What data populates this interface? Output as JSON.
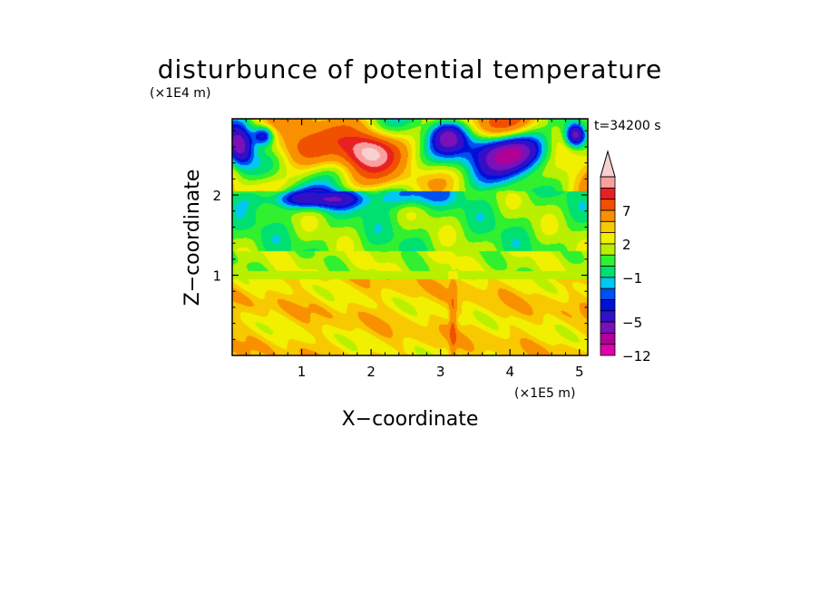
{
  "chart_data": {
    "type": "heatmap",
    "title": "disturbunce of potential temperature",
    "xlabel": "X−coordinate",
    "ylabel": "Z−coordinate",
    "x_multiplier_label": "(×1E5 m)",
    "y_multiplier_label": "(×1E4 m)",
    "time_label": "t=34200 s",
    "xlim": [
      0,
      5.12
    ],
    "ylim": [
      0,
      2.95
    ],
    "x_ticks": [
      {
        "value": 1,
        "label": "1"
      },
      {
        "value": 2,
        "label": "2"
      },
      {
        "value": 3,
        "label": "3"
      },
      {
        "value": 4,
        "label": "4"
      },
      {
        "value": 5,
        "label": "5"
      }
    ],
    "y_ticks": [
      {
        "value": 1,
        "label": "1"
      },
      {
        "value": 2,
        "label": "2"
      }
    ],
    "colorbar": {
      "extend": "max",
      "levels": [
        -12,
        -9,
        -7,
        -5,
        -4,
        -3,
        -2,
        -1,
        0,
        1,
        2,
        3,
        5,
        7,
        9,
        11
      ],
      "colors": [
        "#e000b0",
        "#b00098",
        "#7a10b8",
        "#3010c8",
        "#0010d8",
        "#0050f0",
        "#00c8f0",
        "#00e070",
        "#30f030",
        "#b8f000",
        "#f0f000",
        "#f8c800",
        "#f89000",
        "#f05000",
        "#e82020",
        "#f8a0a0",
        "#f8d0d0"
      ],
      "tick_labels": [
        {
          "value": -12,
          "label": "−12"
        },
        {
          "value": -5,
          "label": "−5"
        },
        {
          "value": -1,
          "label": "−1"
        },
        {
          "value": 2,
          "label": "2"
        },
        {
          "value": 7,
          "label": "7"
        }
      ]
    }
  }
}
